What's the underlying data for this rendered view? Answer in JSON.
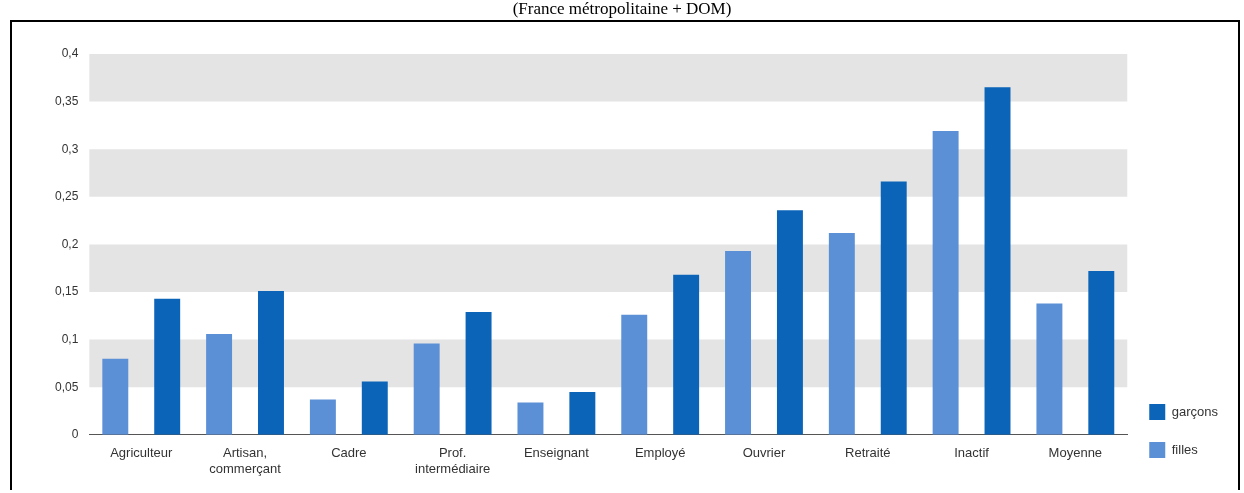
{
  "chart_data": {
    "type": "bar",
    "subtitle": "(France métropolitaine + DOM)",
    "categories": [
      "Agriculteur",
      "Artisan,\ncommerçant",
      "Cadre",
      "Prof.\nintermédiaire",
      "Enseignant",
      "Employé",
      "Ouvrier",
      "Retraité",
      "Inactif",
      "Moyenne"
    ],
    "series": [
      {
        "name": "filles",
        "color": "#5b8fd6",
        "values": [
          0.08,
          0.106,
          0.037,
          0.096,
          0.034,
          0.126,
          0.193,
          0.212,
          0.319,
          0.138
        ]
      },
      {
        "name": "garçons",
        "color": "#0b64b8",
        "values": [
          0.143,
          0.151,
          0.056,
          0.129,
          0.045,
          0.168,
          0.236,
          0.266,
          0.365,
          0.172
        ]
      }
    ],
    "ylim": [
      0,
      0.4
    ],
    "yticks": [
      {
        "value": 0,
        "label": "0"
      },
      {
        "value": 0.05,
        "label": "0,05"
      },
      {
        "value": 0.1,
        "label": "0,1"
      },
      {
        "value": 0.15,
        "label": "0,15"
      },
      {
        "value": 0.2,
        "label": "0,2"
      },
      {
        "value": 0.25,
        "label": "0,25"
      },
      {
        "value": 0.3,
        "label": "0,3"
      },
      {
        "value": 0.35,
        "label": "0,35"
      },
      {
        "value": 0.4,
        "label": "0,4"
      }
    ],
    "bands": [
      {
        "axis": "y",
        "from": 0.05,
        "to": 0.1,
        "color": "#e4e4e4"
      },
      {
        "axis": "y",
        "from": 0.15,
        "to": 0.2,
        "color": "#e4e4e4"
      },
      {
        "axis": "y",
        "from": 0.25,
        "to": 0.3,
        "color": "#e4e4e4"
      },
      {
        "axis": "y",
        "from": 0.35,
        "to": 0.4,
        "color": "#e4e4e4"
      }
    ],
    "grid": false,
    "legend": "bottom right"
  }
}
